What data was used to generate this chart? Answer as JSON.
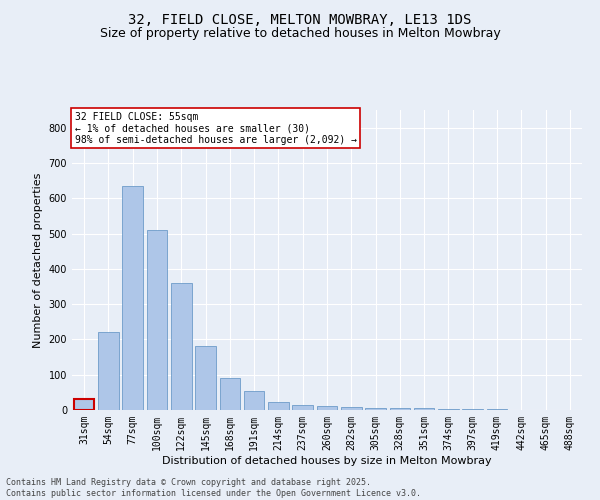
{
  "title": "32, FIELD CLOSE, MELTON MOWBRAY, LE13 1DS",
  "subtitle": "Size of property relative to detached houses in Melton Mowbray",
  "xlabel": "Distribution of detached houses by size in Melton Mowbray",
  "ylabel": "Number of detached properties",
  "categories": [
    "31sqm",
    "54sqm",
    "77sqm",
    "100sqm",
    "122sqm",
    "145sqm",
    "168sqm",
    "191sqm",
    "214sqm",
    "237sqm",
    "260sqm",
    "282sqm",
    "305sqm",
    "328sqm",
    "351sqm",
    "374sqm",
    "397sqm",
    "419sqm",
    "442sqm",
    "465sqm",
    "488sqm"
  ],
  "values": [
    30,
    220,
    635,
    510,
    360,
    180,
    90,
    55,
    22,
    15,
    12,
    8,
    5,
    7,
    5,
    4,
    2,
    2,
    1,
    1,
    0
  ],
  "bar_color": "#aec6e8",
  "bar_edge_color": "#5a8fc2",
  "highlight_bar_index": 0,
  "highlight_edge_color": "#cc0000",
  "annotation_text": "32 FIELD CLOSE: 55sqm\n← 1% of detached houses are smaller (30)\n98% of semi-detached houses are larger (2,092) →",
  "annotation_box_color": "#ffffff",
  "annotation_edge_color": "#cc0000",
  "ylim": [
    0,
    850
  ],
  "yticks": [
    0,
    100,
    200,
    300,
    400,
    500,
    600,
    700,
    800
  ],
  "background_color": "#e8eef7",
  "plot_bg_color": "#e8eef7",
  "grid_color": "#ffffff",
  "footer": "Contains HM Land Registry data © Crown copyright and database right 2025.\nContains public sector information licensed under the Open Government Licence v3.0.",
  "title_fontsize": 10,
  "subtitle_fontsize": 9,
  "xlabel_fontsize": 8,
  "ylabel_fontsize": 8,
  "tick_fontsize": 7,
  "annotation_fontsize": 7,
  "footer_fontsize": 6
}
